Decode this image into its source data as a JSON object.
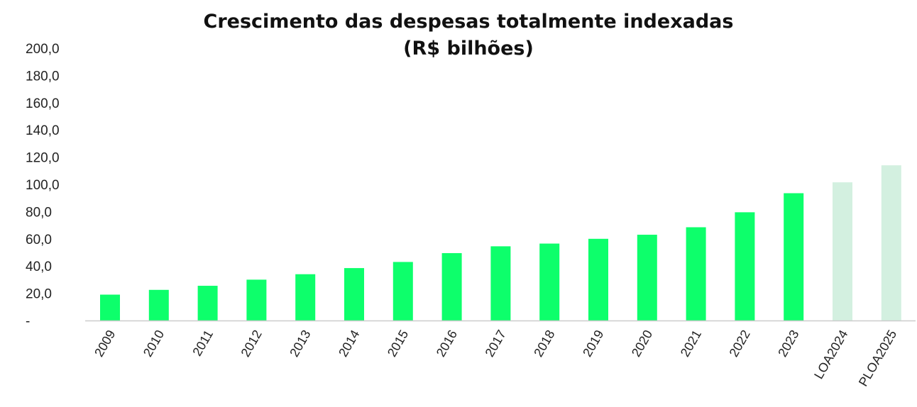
{
  "chart_data": {
    "type": "bar",
    "title": "Crescimento das despesas totalmente indexadas",
    "subtitle": "(R$ bilhões)",
    "categories": [
      "2009",
      "2010",
      "2011",
      "2012",
      "2013",
      "2014",
      "2015",
      "2016",
      "2017",
      "2018",
      "2019",
      "2020",
      "2021",
      "2022",
      "2023",
      "LOA2024",
      "PLOA2025"
    ],
    "values": [
      19.0,
      22.5,
      25.5,
      30.0,
      34.0,
      38.5,
      43.0,
      49.5,
      54.5,
      56.5,
      60.0,
      63.0,
      68.5,
      79.5,
      93.5,
      101.5,
      114.0
    ],
    "projected": [
      false,
      false,
      false,
      false,
      false,
      false,
      false,
      false,
      false,
      false,
      false,
      false,
      false,
      false,
      false,
      true,
      true
    ],
    "ylim": [
      0,
      200
    ],
    "yticks": [
      0,
      20,
      40,
      60,
      80,
      100,
      120,
      140,
      160,
      180,
      200
    ],
    "ytick_labels": [
      "-",
      "20,0",
      "40,0",
      "60,0",
      "80,0",
      "100,0",
      "120,0",
      "140,0",
      "160,0",
      "180,0",
      "200,0"
    ],
    "xlabel": "",
    "ylabel": "",
    "grid": false,
    "colors": {
      "actual": "#0dff6b",
      "projected": "#d3f0e0",
      "axis": "#cccccc"
    }
  }
}
